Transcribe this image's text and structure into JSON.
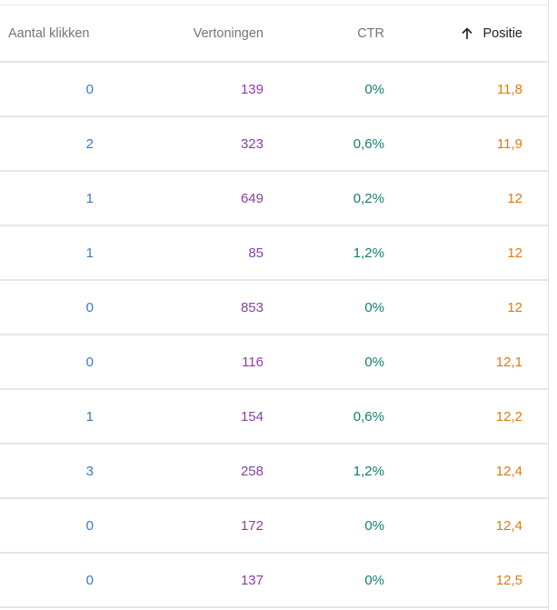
{
  "table": {
    "headers": {
      "clicks": "Aantal klikken",
      "impressions": "Vertoningen",
      "ctr": "CTR",
      "position": "Positie"
    },
    "sort": {
      "column": "position",
      "direction": "ascending",
      "icon": "arrow-up-icon"
    },
    "rows": [
      {
        "clicks": "0",
        "impressions": "139",
        "ctr": "0%",
        "position": "11,8"
      },
      {
        "clicks": "2",
        "impressions": "323",
        "ctr": "0,6%",
        "position": "11,9"
      },
      {
        "clicks": "1",
        "impressions": "649",
        "ctr": "0,2%",
        "position": "12"
      },
      {
        "clicks": "1",
        "impressions": "85",
        "ctr": "1,2%",
        "position": "12"
      },
      {
        "clicks": "0",
        "impressions": "853",
        "ctr": "0%",
        "position": "12"
      },
      {
        "clicks": "0",
        "impressions": "116",
        "ctr": "0%",
        "position": "12,1"
      },
      {
        "clicks": "1",
        "impressions": "154",
        "ctr": "0,6%",
        "position": "12,2"
      },
      {
        "clicks": "3",
        "impressions": "258",
        "ctr": "1,2%",
        "position": "12,4"
      },
      {
        "clicks": "0",
        "impressions": "172",
        "ctr": "0%",
        "position": "12,4"
      },
      {
        "clicks": "0",
        "impressions": "137",
        "ctr": "0%",
        "position": "12,5"
      }
    ]
  },
  "colors": {
    "clicks": "#3b78c2",
    "impressions": "#8a3fa6",
    "ctr": "#13806c",
    "position": "#dc7b12"
  }
}
